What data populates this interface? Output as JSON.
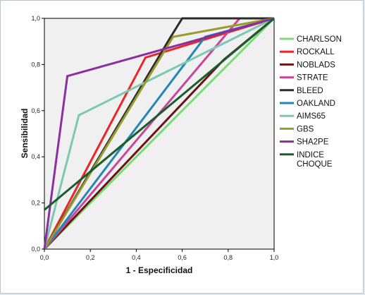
{
  "chart_data": {
    "type": "line",
    "title": "",
    "xlabel": "1 - Especificidad",
    "ylabel": "Sensibilidad",
    "xlim": [
      0,
      1
    ],
    "ylim": [
      0,
      1
    ],
    "grid": false,
    "legend_position": "right",
    "x_ticks": [
      "0,0",
      "0,2",
      "0,4",
      "0,6",
      "0,8",
      "1,0"
    ],
    "y_ticks": [
      "0,0",
      "0,2",
      "0,4",
      "0,6",
      "0,8",
      "1,0"
    ],
    "series": [
      {
        "name": "CHARLSON",
        "color": "#7dd87c",
        "x": [
          0,
          1
        ],
        "y": [
          0,
          1
        ]
      },
      {
        "name": "ROCKALL",
        "color": "#e8262b",
        "x": [
          0,
          0.44,
          1
        ],
        "y": [
          0,
          0.83,
          1
        ]
      },
      {
        "name": "NOBLADS",
        "color": "#6b1414",
        "x": [
          0,
          0.78,
          1
        ],
        "y": [
          0,
          0.82,
          1
        ]
      },
      {
        "name": "STRATE",
        "color": "#c8479a",
        "x": [
          0,
          0.85,
          1
        ],
        "y": [
          0,
          1.0,
          1
        ]
      },
      {
        "name": "BLEED",
        "color": "#2b2b2b",
        "x": [
          0,
          0.55,
          0.6,
          1
        ],
        "y": [
          0,
          0.92,
          1.0,
          1
        ]
      },
      {
        "name": "OAKLAND",
        "color": "#2286b7",
        "x": [
          0,
          0.7,
          1
        ],
        "y": [
          0,
          0.92,
          1
        ]
      },
      {
        "name": "AIMS65",
        "color": "#7cc8b0",
        "x": [
          0,
          0.15,
          1
        ],
        "y": [
          0,
          0.58,
          1
        ]
      },
      {
        "name": "GBS",
        "color": "#9b9a2c",
        "x": [
          0,
          0.56,
          1
        ],
        "y": [
          0,
          0.92,
          1
        ]
      },
      {
        "name": "SHA2PE",
        "color": "#8a2fa0",
        "x": [
          0,
          0.1,
          1
        ],
        "y": [
          0,
          0.75,
          1
        ]
      },
      {
        "name": "INDICE CHOQUE",
        "color": "#1a5c2c",
        "x": [
          0,
          1
        ],
        "y": [
          0.17,
          1
        ]
      }
    ]
  }
}
